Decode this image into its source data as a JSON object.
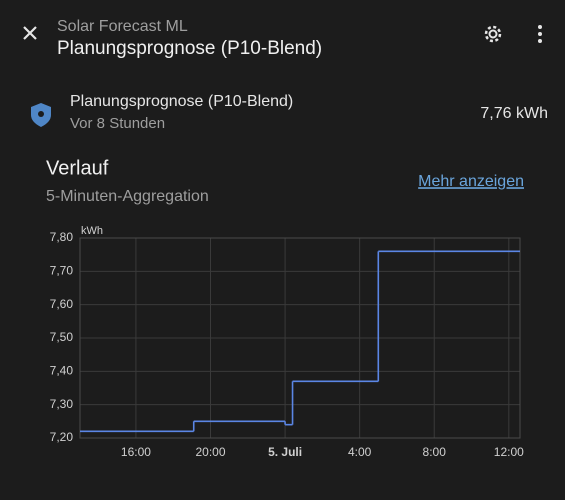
{
  "header": {
    "subtitle": "Solar Forecast ML",
    "title": "Planungsprognose (P10-Blend)"
  },
  "entity": {
    "name": "Planungsprognose (P10-Blend)",
    "time": "Vor 8 Stunden",
    "state": "7,76 kWh"
  },
  "history": {
    "title": "Verlauf",
    "subtitle": "5-Minuten-Aggregation",
    "link": "Mehr anzeigen"
  },
  "chart_data": {
    "type": "line",
    "step": "after",
    "y_label": "kWh",
    "x": [
      13,
      19.1,
      24.0,
      24.4,
      29.0
    ],
    "series": [
      {
        "color": "#5b86e5",
        "values": [
          7.22,
          7.25,
          7.24,
          7.37,
          7.76
        ]
      }
    ],
    "xlim": [
      13,
      36.6
    ],
    "xticks": [
      {
        "value": 16,
        "label": "16:00"
      },
      {
        "value": 20,
        "label": "20:00"
      },
      {
        "value": 24,
        "label": "5. Juli"
      },
      {
        "value": 28,
        "label": "4:00"
      },
      {
        "value": 32,
        "label": "8:00"
      },
      {
        "value": 36,
        "label": "12:00"
      }
    ],
    "ylim": [
      7.2,
      7.8
    ],
    "yticks": [
      {
        "value": 7.2,
        "label": "7,20"
      },
      {
        "value": 7.3,
        "label": "7,30"
      },
      {
        "value": 7.4,
        "label": "7,40"
      },
      {
        "value": 7.5,
        "label": "7,50"
      },
      {
        "value": 7.6,
        "label": "7,60"
      },
      {
        "value": 7.7,
        "label": "7,70"
      },
      {
        "value": 7.8,
        "label": "7,80"
      }
    ],
    "grid": true
  }
}
